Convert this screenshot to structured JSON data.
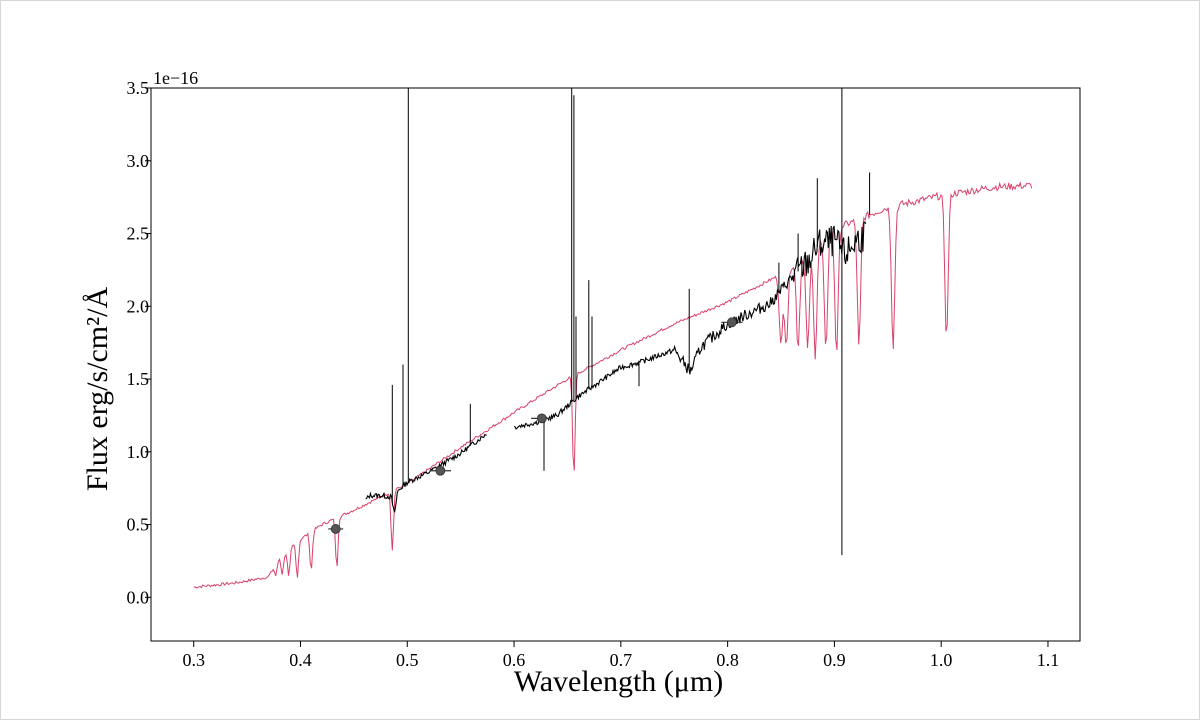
{
  "chart_data": {
    "type": "line",
    "xlabel": "Wavelength (μm)",
    "ylabel": "Flux erg/s/cm²/Å",
    "y_offset_label": "1e−16",
    "xlim": [
      0.26,
      1.13
    ],
    "ylim": [
      -0.3,
      3.5
    ],
    "x_ticks": [
      0.3,
      0.4,
      0.5,
      0.6,
      0.7,
      0.8,
      0.9,
      1.0,
      1.1
    ],
    "x_tick_labels": [
      "0.3",
      "0.4",
      "0.5",
      "0.6",
      "0.7",
      "0.8",
      "0.9",
      "1.0",
      "1.1"
    ],
    "y_ticks": [
      0.0,
      0.5,
      1.0,
      1.5,
      2.0,
      2.5,
      3.0,
      3.5
    ],
    "y_tick_labels": [
      "0.0",
      "0.5",
      "1.0",
      "1.5",
      "2.0",
      "2.5",
      "3.0",
      "3.5"
    ],
    "grid": false,
    "series": [
      {
        "role": "model",
        "color": "#d9426a",
        "continuum": [
          [
            0.3,
            0.07
          ],
          [
            0.34,
            0.1
          ],
          [
            0.37,
            0.14
          ],
          [
            0.38,
            0.27
          ],
          [
            0.4,
            0.4
          ],
          [
            0.42,
            0.5
          ],
          [
            0.45,
            0.6
          ],
          [
            0.5,
            0.78
          ],
          [
            0.55,
            1.03
          ],
          [
            0.6,
            1.27
          ],
          [
            0.65,
            1.5
          ],
          [
            0.7,
            1.7
          ],
          [
            0.75,
            1.88
          ],
          [
            0.8,
            2.03
          ],
          [
            0.85,
            2.22
          ],
          [
            0.88,
            2.4
          ],
          [
            0.9,
            2.53
          ],
          [
            0.95,
            2.68
          ],
          [
            1.0,
            2.76
          ],
          [
            1.05,
            2.82
          ],
          [
            1.085,
            2.83
          ]
        ],
        "absorption_lines": [
          [
            0.377,
            0.15
          ],
          [
            0.383,
            0.16
          ],
          [
            0.389,
            0.14
          ],
          [
            0.397,
            0.14
          ],
          [
            0.41,
            0.18
          ],
          [
            0.434,
            0.2
          ],
          [
            0.486,
            0.32
          ],
          [
            0.656,
            0.82
          ],
          [
            0.85,
            1.73
          ],
          [
            0.855,
            1.75
          ],
          [
            0.866,
            1.72
          ],
          [
            0.875,
            1.7
          ],
          [
            0.882,
            1.66
          ],
          [
            0.892,
            1.7
          ],
          [
            0.902,
            1.68
          ],
          [
            0.923,
            1.72
          ],
          [
            0.955,
            1.72
          ],
          [
            1.005,
            1.78
          ]
        ]
      },
      {
        "role": "observed",
        "color": "#000000",
        "segments": [
          [
            [
              0.461,
              0.67
            ],
            [
              0.465,
              0.7
            ],
            [
              0.475,
              0.7
            ],
            [
              0.485,
              0.69
            ],
            [
              0.488,
              0.57
            ],
            [
              0.491,
              0.73
            ],
            [
              0.5,
              0.79
            ],
            [
              0.52,
              0.86
            ],
            [
              0.55,
              0.99
            ],
            [
              0.575,
              1.13
            ]
          ],
          [
            [
              0.6,
              1.17
            ],
            [
              0.62,
              1.2
            ],
            [
              0.64,
              1.25
            ],
            [
              0.66,
              1.38
            ],
            [
              0.68,
              1.48
            ],
            [
              0.7,
              1.58
            ],
            [
              0.72,
              1.62
            ],
            [
              0.75,
              1.7
            ],
            [
              0.765,
              1.55
            ],
            [
              0.775,
              1.72
            ],
            [
              0.8,
              1.88
            ],
            [
              0.82,
              1.95
            ],
            [
              0.84,
              2.02
            ],
            [
              0.86,
              2.2
            ],
            [
              0.875,
              2.3
            ],
            [
              0.885,
              2.42
            ],
            [
              0.9,
              2.45
            ],
            [
              0.91,
              2.35
            ],
            [
              0.92,
              2.45
            ],
            [
              0.93,
              2.5
            ]
          ]
        ],
        "emission_lines": [
          [
            0.486,
            1.46
          ],
          [
            0.496,
            1.6
          ],
          [
            0.501,
            3.5
          ],
          [
            0.559,
            1.33
          ],
          [
            0.628,
            0.87
          ],
          [
            0.654,
            3.5
          ],
          [
            0.656,
            3.45
          ],
          [
            0.658,
            1.93
          ],
          [
            0.673,
            1.93
          ],
          [
            0.67,
            2.18
          ],
          [
            0.717,
            1.45
          ],
          [
            0.764,
            2.12
          ],
          [
            0.848,
            2.3
          ],
          [
            0.866,
            2.5
          ],
          [
            0.884,
            2.88
          ],
          [
            0.907,
            3.5
          ],
          [
            0.907,
            0.29
          ],
          [
            0.933,
            2.92
          ]
        ]
      },
      {
        "role": "photometry",
        "color": "#555555",
        "points": [
          {
            "x": 0.433,
            "y": 0.47,
            "xerr": 0.007
          },
          {
            "x": 0.531,
            "y": 0.87,
            "xerr": 0.01
          },
          {
            "x": 0.626,
            "y": 1.23,
            "xerr": 0.01
          },
          {
            "x": 0.804,
            "y": 1.89,
            "xerr": 0.01
          }
        ]
      }
    ]
  }
}
